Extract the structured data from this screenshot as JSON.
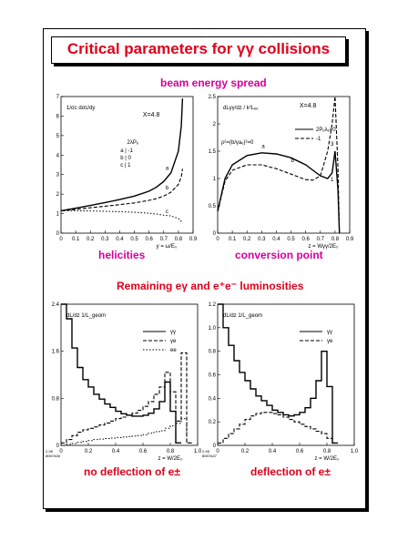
{
  "title": "Critical parameters for γγ collisions",
  "captions": {
    "beam_energy_spread": "beam energy spread",
    "helicities": "helicities",
    "conversion_point": "conversion point",
    "remaining_luminosities": "Remaining eγ and e⁺e⁻ luminosities",
    "no_deflection": "no deflection of e±",
    "deflection": "deflection of e±"
  },
  "colors": {
    "title": "#e0001b",
    "magenta_caption": "#d4009c",
    "red_caption": "#e0001b"
  },
  "chart_data": [
    {
      "type": "line",
      "ylabel": "1/σc dσc/dy",
      "xlabel": "y = ω/E₀",
      "annotations": {
        "x": "X=4.8",
        "legend_head": "2λPₑ",
        "legend_rows": [
          "a | -1",
          "b |  0",
          "c |  1"
        ]
      },
      "xlim": [
        0,
        0.9
      ],
      "ylim": [
        0,
        7
      ],
      "xticks": [
        "0",
        "0.1",
        "0.2",
        "0.3",
        "0.4",
        "0.5",
        "0.6",
        "0.7",
        "0.8",
        "0.9"
      ],
      "yticks": [
        "0",
        "1",
        "2",
        "3",
        "4",
        "5",
        "6",
        "7"
      ],
      "series": [
        {
          "name": "a",
          "x": [
            0,
            0.1,
            0.2,
            0.3,
            0.4,
            0.5,
            0.6,
            0.65,
            0.7,
            0.75,
            0.8,
            0.82,
            0.828
          ],
          "y": [
            1.15,
            1.28,
            1.42,
            1.57,
            1.72,
            1.9,
            2.15,
            2.35,
            2.65,
            3.1,
            4.2,
            5.5,
            6.9
          ]
        },
        {
          "name": "b",
          "x": [
            0,
            0.1,
            0.2,
            0.3,
            0.4,
            0.5,
            0.6,
            0.65,
            0.7,
            0.75,
            0.8,
            0.82,
            0.828
          ],
          "y": [
            1.15,
            1.22,
            1.3,
            1.38,
            1.46,
            1.55,
            1.68,
            1.77,
            1.9,
            2.1,
            2.5,
            2.9,
            3.3
          ]
        },
        {
          "name": "c",
          "x": [
            0,
            0.1,
            0.2,
            0.3,
            0.4,
            0.5,
            0.6,
            0.65,
            0.7,
            0.75,
            0.8,
            0.82,
            0.828
          ],
          "y": [
            1.15,
            1.15,
            1.14,
            1.12,
            1.1,
            1.07,
            1.02,
            0.98,
            0.92,
            0.88,
            0.75,
            0.6,
            0.5
          ]
        }
      ]
    },
    {
      "type": "line",
      "ylabel": "dLγγ/dz / k²Lₑₑ",
      "xlabel": "z = Wγγ/2E₀",
      "annotations": {
        "x": "X=4.8",
        "rho": "ρ²=(b/γaₑ)²=0",
        "curve_a": "a",
        "curve_b": "b",
        "curve_1": "1",
        "curve_3": "3"
      },
      "xlim": [
        0,
        0.9
      ],
      "ylim": [
        0,
        2.5
      ],
      "xticks": [
        "0",
        "0.1",
        "0.2",
        "0.3",
        "0.4",
        "0.5",
        "0.6",
        "0.7",
        "0.8",
        "0.9"
      ],
      "yticks": [
        "0",
        "0.5",
        "1",
        "1.5",
        "2",
        "2.5"
      ],
      "series": [
        {
          "name": "2Pₑλₑ=0",
          "x": [
            0,
            0.05,
            0.1,
            0.2,
            0.3,
            0.4,
            0.5,
            0.6,
            0.65,
            0.7,
            0.75,
            0.78,
            0.8,
            0.82,
            0.83
          ],
          "y": [
            0.4,
            1.0,
            1.25,
            1.42,
            1.47,
            1.45,
            1.38,
            1.25,
            1.15,
            1.05,
            1.0,
            1.1,
            1.5,
            0.8,
            0.0
          ]
        },
        {
          "name": "-1",
          "x": [
            0,
            0.05,
            0.1,
            0.2,
            0.3,
            0.4,
            0.5,
            0.6,
            0.65,
            0.7,
            0.75,
            0.78,
            0.8,
            0.82,
            0.83
          ],
          "y": [
            0.4,
            0.95,
            1.15,
            1.25,
            1.25,
            1.18,
            1.08,
            0.98,
            0.97,
            1.05,
            1.5,
            2.0,
            2.5,
            1.2,
            0.0
          ]
        }
      ]
    },
    {
      "type": "bar",
      "ylabel": "dL/dz 1/L_geom",
      "xlabel": "z = W/2E₀",
      "footnote": "2-95\n8067A06",
      "xlim": [
        0,
        1.0
      ],
      "ylim": [
        0,
        2.9
      ],
      "xticks": [
        "0",
        "0.2",
        "0.4",
        "0.6",
        "0.8",
        "1.0"
      ],
      "yticks": [
        "0",
        "0.8",
        "1.6",
        "2.4"
      ],
      "series": [
        {
          "name": "γγ",
          "x": [
            0.02,
            0.06,
            0.1,
            0.14,
            0.18,
            0.22,
            0.26,
            0.3,
            0.34,
            0.38,
            0.42,
            0.46,
            0.5,
            0.54,
            0.58,
            0.62,
            0.66,
            0.7,
            0.74,
            0.78,
            0.82,
            0.86
          ],
          "y": [
            2.9,
            2.6,
            2.0,
            1.6,
            1.35,
            1.2,
            1.05,
            0.95,
            0.85,
            0.78,
            0.7,
            0.65,
            0.62,
            0.6,
            0.6,
            0.62,
            0.66,
            0.75,
            0.9,
            1.3,
            0.7,
            0.05
          ]
        },
        {
          "name": "γe",
          "x": [
            0.02,
            0.06,
            0.1,
            0.14,
            0.18,
            0.22,
            0.26,
            0.3,
            0.34,
            0.38,
            0.42,
            0.46,
            0.5,
            0.54,
            0.58,
            0.62,
            0.66,
            0.7,
            0.74,
            0.78,
            0.82,
            0.86,
            0.9,
            0.94
          ],
          "y": [
            0.05,
            0.12,
            0.2,
            0.27,
            0.32,
            0.35,
            0.38,
            0.42,
            0.46,
            0.5,
            0.55,
            0.58,
            0.62,
            0.66,
            0.72,
            0.8,
            0.9,
            1.05,
            1.2,
            1.5,
            1.1,
            0.5,
            1.9,
            0.05
          ]
        },
        {
          "name": "ee",
          "x": [
            0.02,
            0.06,
            0.1,
            0.14,
            0.18,
            0.22,
            0.26,
            0.3,
            0.34,
            0.38,
            0.42,
            0.46,
            0.5,
            0.54,
            0.58,
            0.62,
            0.66,
            0.7,
            0.74,
            0.78,
            0.82,
            0.86,
            0.9,
            0.94
          ],
          "y": [
            0.0,
            0.02,
            0.04,
            0.06,
            0.08,
            0.1,
            0.12,
            0.13,
            0.14,
            0.15,
            0.16,
            0.17,
            0.18,
            0.19,
            0.2,
            0.22,
            0.25,
            0.28,
            0.3,
            0.35,
            0.4,
            0.45,
            0.55,
            0.05
          ]
        }
      ]
    },
    {
      "type": "bar",
      "ylabel": "dL/dz 1/L_geom",
      "xlabel": "z = W/2E₀",
      "footnote": "2-95\n8067A07",
      "xlim": [
        0,
        1.0
      ],
      "ylim": [
        0,
        1.2
      ],
      "xticks": [
        "0",
        "0.2",
        "0.4",
        "0.6",
        "0.8",
        "1.0"
      ],
      "yticks": [
        "0",
        "0.2",
        "0.4",
        "0.6",
        "0.8",
        "1.0",
        "1.2"
      ],
      "series": [
        {
          "name": "γγ",
          "x": [
            0.02,
            0.06,
            0.1,
            0.14,
            0.18,
            0.22,
            0.26,
            0.3,
            0.34,
            0.38,
            0.42,
            0.46,
            0.5,
            0.54,
            0.58,
            0.62,
            0.66,
            0.7,
            0.74,
            0.78,
            0.82,
            0.86
          ],
          "y": [
            1.2,
            1.0,
            0.85,
            0.72,
            0.62,
            0.55,
            0.48,
            0.42,
            0.38,
            0.34,
            0.3,
            0.28,
            0.26,
            0.25,
            0.26,
            0.28,
            0.32,
            0.4,
            0.55,
            0.8,
            0.5,
            0.02
          ]
        },
        {
          "name": "γe",
          "x": [
            0.02,
            0.06,
            0.1,
            0.14,
            0.18,
            0.22,
            0.26,
            0.3,
            0.34,
            0.38,
            0.42,
            0.46,
            0.5,
            0.54,
            0.58,
            0.62,
            0.66,
            0.7,
            0.74,
            0.78,
            0.82,
            0.86
          ],
          "y": [
            0.02,
            0.06,
            0.1,
            0.14,
            0.18,
            0.22,
            0.25,
            0.27,
            0.28,
            0.28,
            0.27,
            0.26,
            0.24,
            0.22,
            0.2,
            0.18,
            0.16,
            0.14,
            0.12,
            0.1,
            0.06,
            0.02
          ]
        }
      ]
    }
  ]
}
